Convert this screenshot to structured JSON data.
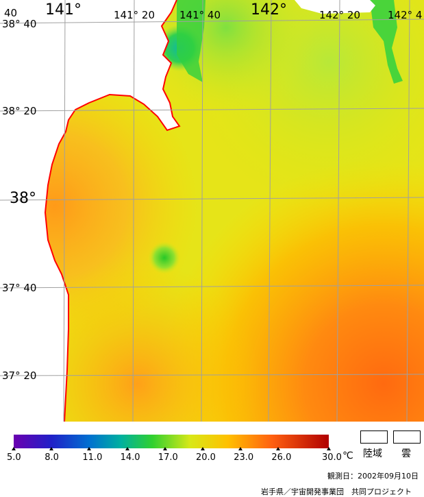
{
  "map": {
    "lon_labels": [
      {
        "text": "141°",
        "size": "big"
      },
      {
        "text": "141° 20",
        "size": "normal"
      },
      {
        "text": "141° 40",
        "size": "normal"
      },
      {
        "text": "142°",
        "size": "big"
      },
      {
        "text": "142° 20",
        "size": "normal"
      },
      {
        "text": "142° 4",
        "size": "normal"
      }
    ],
    "lat_labels": [
      {
        "text": "38° 40",
        "size": "normal"
      },
      {
        "text": "38° 20",
        "size": "normal"
      },
      {
        "text": "38°",
        "size": "big"
      },
      {
        "text": "37° 40",
        "size": "normal"
      },
      {
        "text": "37° 20",
        "size": "normal"
      }
    ],
    "corner_label": "40"
  },
  "legend": {
    "ticks": [
      "5.0",
      "8.0",
      "11.0",
      "14.0",
      "17.0",
      "20.0",
      "23.0",
      "26.0",
      "30.0"
    ],
    "unit": "℃",
    "land_label": "陸域",
    "cloud_label": "雲"
  },
  "footer": {
    "date": "観測日：2002年09月10日",
    "credit": "岩手県／宇宙開発事業団　共同プロジェクト"
  },
  "colors": {
    "land": "#ffffff",
    "coast": "#ff0000",
    "grid": "#a0a0a0"
  }
}
